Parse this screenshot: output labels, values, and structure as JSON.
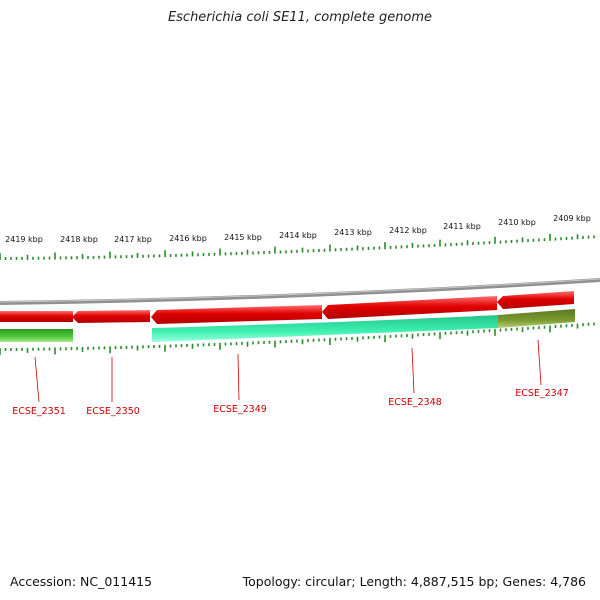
{
  "title": "Escherichia coli SE11, complete genome",
  "footer": {
    "accession": "Accession: NC_011415",
    "summary": "Topology: circular; Length: 4,887,515 bp; Genes: 4,786"
  },
  "colors": {
    "backbone": "#8a8a8a",
    "forward_gene": "#e00000",
    "reverse_gene_a": "#22c08a",
    "reverse_gene_b": "#3fb02a",
    "reverse_gene_c": "#6b8a25",
    "ticks": "#2a8a2a",
    "gene_label": "#cc0000"
  },
  "diagram_data": {
    "type": "linear-genome-map",
    "scale": {
      "unit": "kbp",
      "labels": [
        "2419 kbp",
        "2418 kbp",
        "2417 kbp",
        "2416 kbp",
        "2415 kbp",
        "2414 kbp",
        "2413 kbp",
        "2412 kbp",
        "2411 kbp",
        "2410 kbp",
        "2409 kbp"
      ]
    },
    "genes": [
      {
        "name": "ECSE_2351"
      },
      {
        "name": "ECSE_2350"
      },
      {
        "name": "ECSE_2349"
      },
      {
        "name": "ECSE_2348"
      },
      {
        "name": "ECSE_2347"
      }
    ]
  }
}
